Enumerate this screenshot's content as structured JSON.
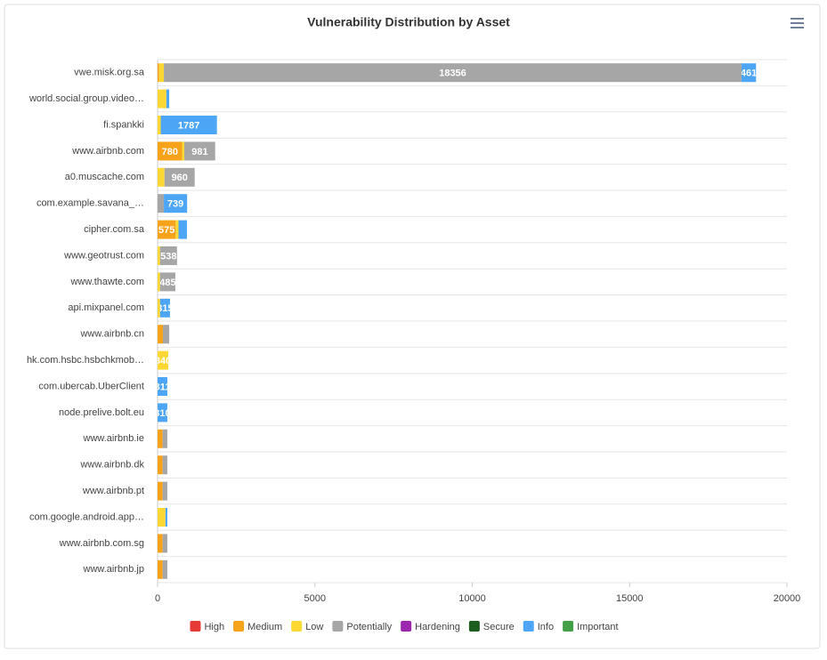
{
  "chart_data": {
    "type": "bar",
    "orientation": "horizontal",
    "stacked": true,
    "title": "Vulnerability Distribution by Asset",
    "categories": [
      "vwe.misk.org.sa",
      "world.social.group.video…",
      "fi.spankki",
      "www.airbnb.com",
      "a0.muscache.com",
      "com.example.savana_…",
      "cipher.com.sa",
      "www.geotrust.com",
      "www.thawte.com",
      "api.mixpanel.com",
      "www.airbnb.cn",
      "hk.com.hsbc.hsbchkmob…",
      "com.ubercab.UberClient",
      "node.prelive.bolt.eu",
      "www.airbnb.ie",
      "www.airbnb.dk",
      "www.airbnb.pt",
      "com.google.android.app…",
      "www.airbnb.com.sg",
      "www.airbnb.jp"
    ],
    "series": [
      {
        "name": "High",
        "color": "#e53935",
        "values": [
          0,
          0,
          0,
          0,
          0,
          0,
          0,
          0,
          0,
          0,
          0,
          0,
          0,
          0,
          0,
          0,
          0,
          0,
          0,
          0
        ]
      },
      {
        "name": "Medium",
        "color": "#f7a21b",
        "values": [
          50,
          0,
          0,
          780,
          0,
          0,
          575,
          0,
          0,
          0,
          170,
          0,
          0,
          0,
          160,
          160,
          160,
          0,
          160,
          160
        ]
      },
      {
        "name": "Low",
        "color": "#fdd835",
        "values": [
          150,
          280,
          100,
          70,
          220,
          0,
          90,
          80,
          80,
          80,
          0,
          340,
          0,
          0,
          0,
          0,
          0,
          250,
          0,
          0
        ]
      },
      {
        "name": "Potentially",
        "color": "#a6a6a6",
        "values": [
          18356,
          0,
          0,
          981,
          960,
          200,
          0,
          538,
          485,
          0,
          200,
          0,
          0,
          0,
          150,
          150,
          150,
          0,
          150,
          150
        ]
      },
      {
        "name": "Hardening",
        "color": "#9c27b0",
        "values": [
          0,
          0,
          0,
          0,
          0,
          0,
          0,
          0,
          0,
          0,
          0,
          0,
          0,
          0,
          0,
          0,
          0,
          0,
          0,
          0
        ]
      },
      {
        "name": "Secure",
        "color": "#1b5e20",
        "values": [
          0,
          0,
          0,
          0,
          0,
          0,
          0,
          0,
          0,
          0,
          0,
          0,
          0,
          0,
          0,
          0,
          0,
          0,
          0,
          0
        ]
      },
      {
        "name": "Info",
        "color": "#4da6f5",
        "values": [
          461,
          90,
          1787,
          0,
          0,
          739,
          268,
          0,
          0,
          315,
          0,
          0,
          311,
          310,
          0,
          0,
          0,
          60,
          0,
          0
        ]
      },
      {
        "name": "Important",
        "color": "#43a047",
        "values": [
          0,
          0,
          0,
          0,
          0,
          0,
          0,
          0,
          0,
          0,
          0,
          0,
          0,
          0,
          0,
          0,
          0,
          0,
          0,
          0
        ]
      }
    ],
    "xlim": [
      0,
      20000
    ],
    "xticks": [
      0,
      5000,
      10000,
      15000,
      20000
    ],
    "grid": true,
    "legend": "bottom"
  }
}
